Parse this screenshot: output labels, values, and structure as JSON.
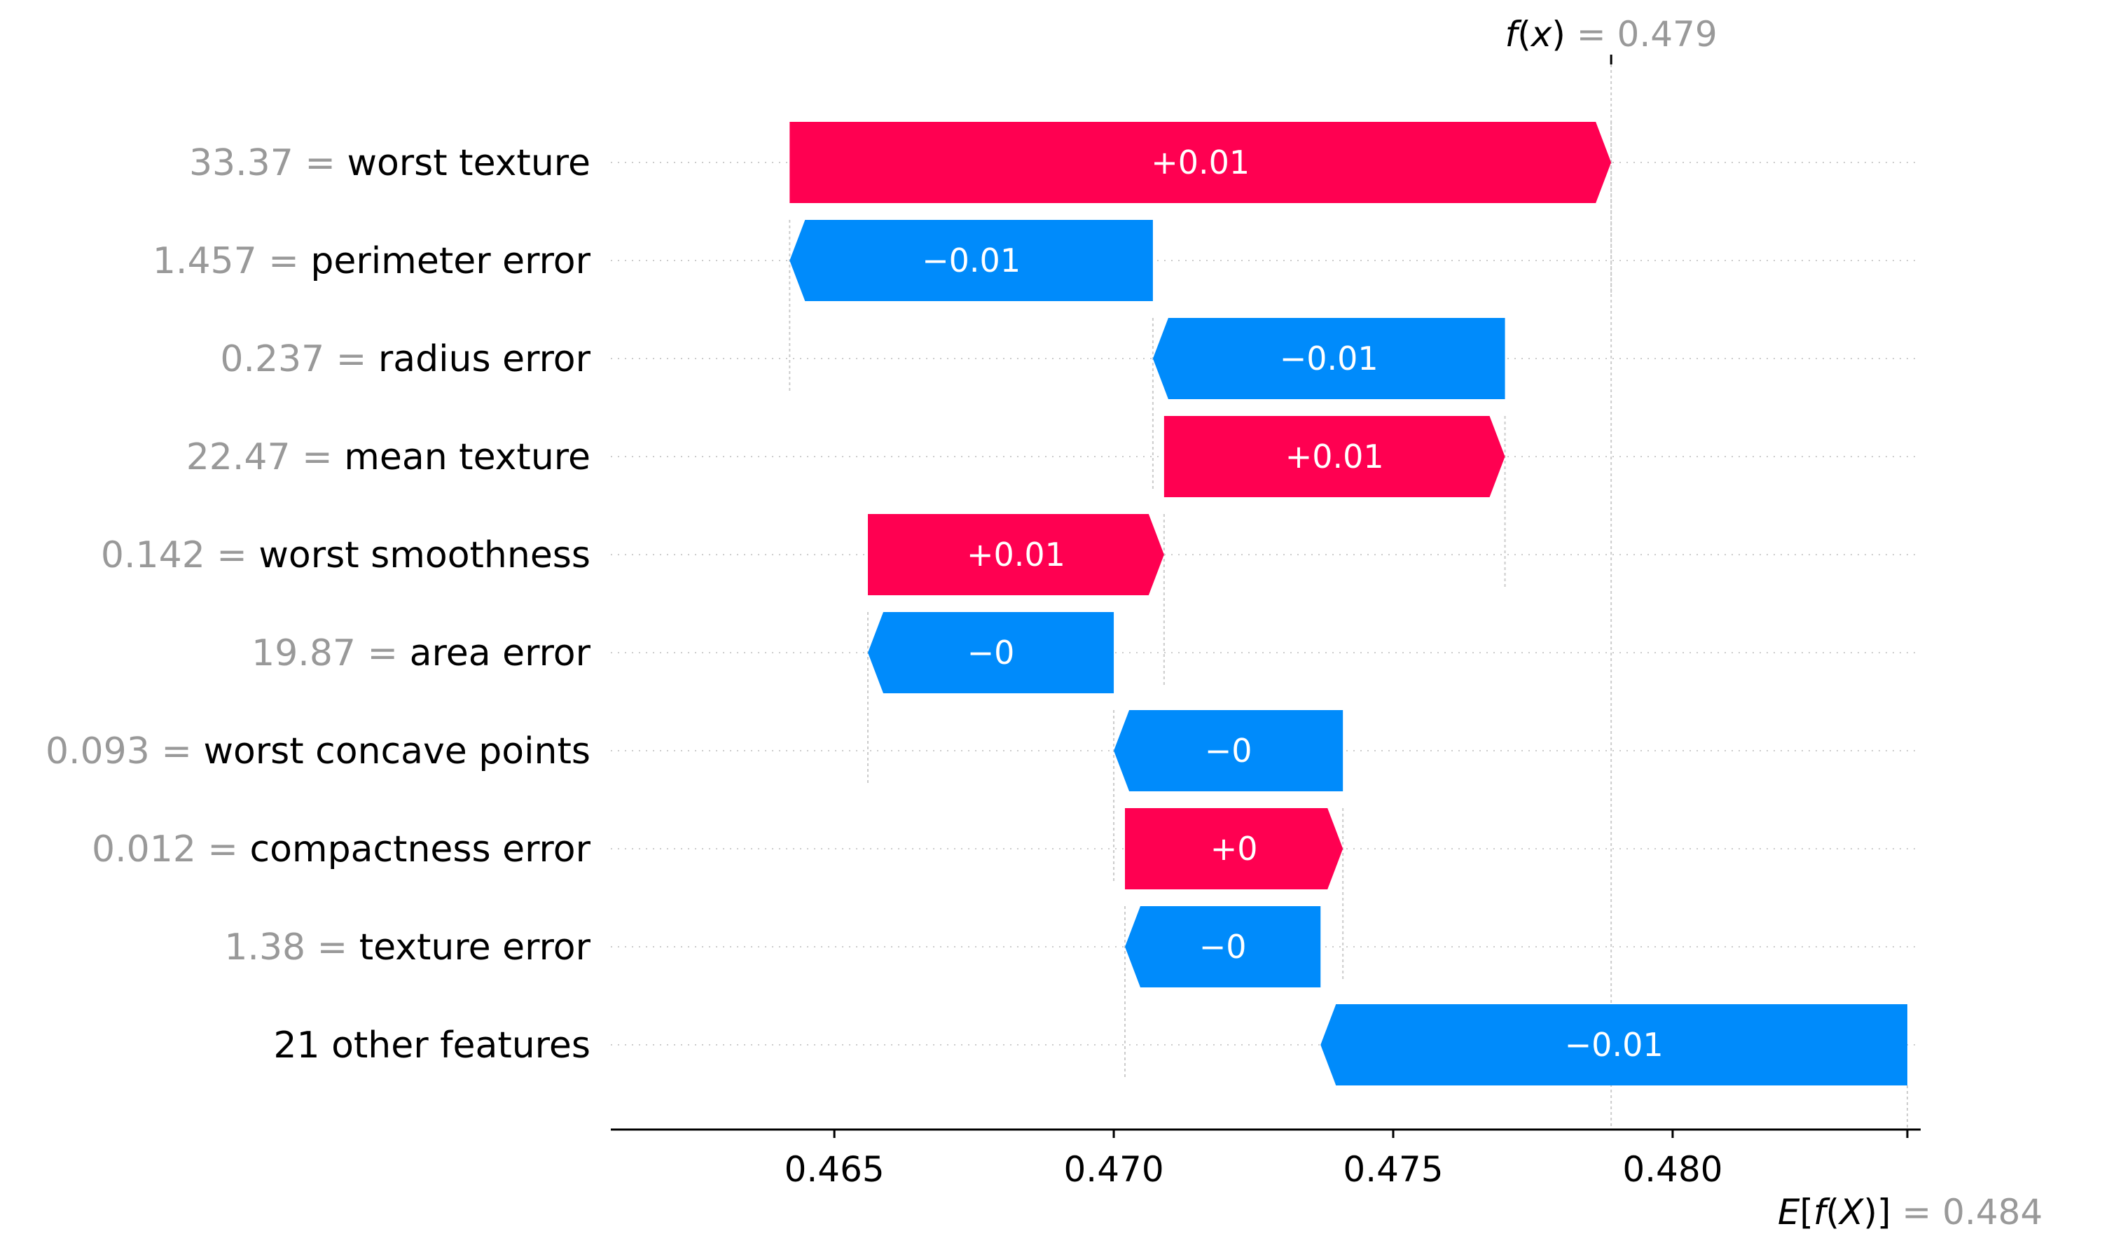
{
  "colors": {
    "positive": "#ff0051",
    "negative": "#008bfb",
    "muted": "#999999",
    "grid": "#cccccc"
  },
  "chart_data": {
    "type": "waterfall",
    "title": "",
    "xlim": [
      0.461,
      0.4842
    ],
    "x_ticks": [
      0.465,
      0.47,
      0.475,
      0.48
    ],
    "x_tick_labels": [
      "0.465",
      "0.470",
      "0.475",
      "0.480"
    ],
    "fx": {
      "label_fn": "f",
      "label_arg": "x",
      "text": "= 0.479",
      "value": 0.4789
    },
    "base": {
      "label_fn": "E",
      "label_arg": "f(X)",
      "text": "= 0.484",
      "value": 0.4842
    },
    "features": [
      {
        "value": "33.37",
        "name": "worst texture",
        "start": 0.4642,
        "end": 0.4789,
        "label": "+0.01"
      },
      {
        "value": "1.457",
        "name": "perimeter error",
        "start": 0.4707,
        "end": 0.4642,
        "label": "−0.01"
      },
      {
        "value": "0.237",
        "name": "radius error",
        "start": 0.477,
        "end": 0.4707,
        "label": "−0.01"
      },
      {
        "value": "22.47",
        "name": "mean texture",
        "start": 0.4709,
        "end": 0.477,
        "label": "+0.01"
      },
      {
        "value": "0.142",
        "name": "worst smoothness",
        "start": 0.4656,
        "end": 0.4709,
        "label": "+0.01"
      },
      {
        "value": "19.87",
        "name": "area error",
        "start": 0.47,
        "end": 0.4656,
        "label": "−0"
      },
      {
        "value": "0.093",
        "name": "worst concave points",
        "start": 0.4741,
        "end": 0.47,
        "label": "−0"
      },
      {
        "value": "0.012",
        "name": "compactness error",
        "start": 0.4702,
        "end": 0.4741,
        "label": "+0"
      },
      {
        "value": "1.38",
        "name": "texture error",
        "start": 0.4737,
        "end": 0.4702,
        "label": "−0"
      },
      {
        "value": "",
        "name": "21 other features",
        "start": 0.4842,
        "end": 0.4737,
        "label": "−0.01"
      }
    ]
  }
}
